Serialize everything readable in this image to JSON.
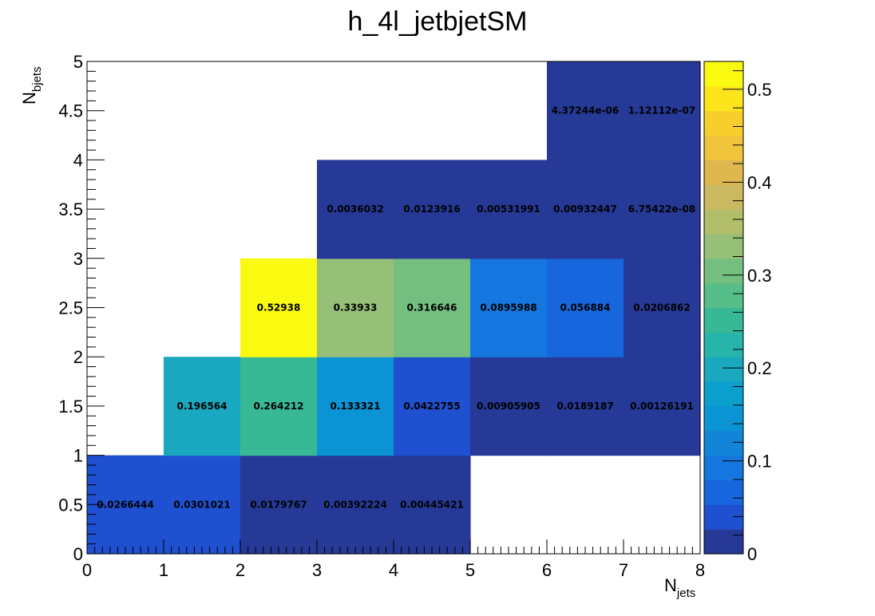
{
  "chart_data": {
    "type": "heatmap",
    "title": "h_4l_jetbjetSM",
    "xlabel_main": "N",
    "xlabel_sub": "jets",
    "ylabel_main": "N",
    "ylabel_sub": "bjets",
    "xlim": [
      0,
      8
    ],
    "ylim": [
      0,
      5
    ],
    "zlim": [
      0,
      0.53
    ],
    "x_ticks": [
      "0",
      "1",
      "2",
      "3",
      "4",
      "5",
      "6",
      "7",
      "8"
    ],
    "y_ticks": [
      "0",
      "0.5",
      "1",
      "1.5",
      "2",
      "2.5",
      "3",
      "3.5",
      "4",
      "4.5",
      "5"
    ],
    "z_ticks": [
      "0",
      "0.1",
      "0.2",
      "0.3",
      "0.4",
      "0.5"
    ],
    "grid": false,
    "colorbar": "right",
    "cells": [
      {
        "x": 0,
        "y": 0,
        "label": "0.0266444",
        "value": 0.0266444
      },
      {
        "x": 1,
        "y": 0,
        "label": "0.0301021",
        "value": 0.0301021
      },
      {
        "x": 2,
        "y": 0,
        "label": "0.0179767",
        "value": 0.0179767
      },
      {
        "x": 3,
        "y": 0,
        "label": "0.00392224",
        "value": 0.00392224
      },
      {
        "x": 4,
        "y": 0,
        "label": "0.00445421",
        "value": 0.00445421
      },
      {
        "x": 1,
        "y": 1,
        "label": "0.196564",
        "value": 0.196564
      },
      {
        "x": 2,
        "y": 1,
        "label": "0.264212",
        "value": 0.264212
      },
      {
        "x": 3,
        "y": 1,
        "label": "0.133321",
        "value": 0.133321
      },
      {
        "x": 4,
        "y": 1,
        "label": "0.0422755",
        "value": 0.0422755
      },
      {
        "x": 5,
        "y": 1,
        "label": "0.00905905",
        "value": 0.00905905
      },
      {
        "x": 6,
        "y": 1,
        "label": "0.0189187",
        "value": 0.0189187
      },
      {
        "x": 7,
        "y": 1,
        "label": "0.00126191",
        "value": 0.00126191
      },
      {
        "x": 2,
        "y": 2,
        "label": "0.52938",
        "value": 0.52938
      },
      {
        "x": 3,
        "y": 2,
        "label": "0.33933",
        "value": 0.33933
      },
      {
        "x": 4,
        "y": 2,
        "label": "0.316646",
        "value": 0.316646
      },
      {
        "x": 5,
        "y": 2,
        "label": "0.0895988",
        "value": 0.0895988
      },
      {
        "x": 6,
        "y": 2,
        "label": "0.056884",
        "value": 0.056884
      },
      {
        "x": 7,
        "y": 2,
        "label": "0.0206862",
        "value": 0.0206862
      },
      {
        "x": 3,
        "y": 3,
        "label": "0.0036032",
        "value": 0.0036032
      },
      {
        "x": 4,
        "y": 3,
        "label": "0.0123916",
        "value": 0.0123916
      },
      {
        "x": 5,
        "y": 3,
        "label": "0.00531991",
        "value": 0.00531991
      },
      {
        "x": 6,
        "y": 3,
        "label": "0.00932447",
        "value": 0.00932447
      },
      {
        "x": 7,
        "y": 3,
        "label": "6.75422e-08",
        "value": 6.75422e-08
      },
      {
        "x": 6,
        "y": 4,
        "label": "4.37244e-06",
        "value": 4.37244e-06
      },
      {
        "x": 7,
        "y": 4,
        "label": "1.12112e-07",
        "value": 1.12112e-07
      }
    ],
    "palette": [
      "#263997",
      "#1e50d0",
      "#1866dd",
      "#1476de",
      "#1385d8",
      "#0b94d3",
      "#0a9fcd",
      "#19a8bf",
      "#27b4ab",
      "#38b996",
      "#56be88",
      "#74bf80",
      "#96bf77",
      "#b2be6a",
      "#cab960",
      "#deb84f",
      "#f0c33c",
      "#f8ce2c",
      "#fde51c",
      "#f9fa0f"
    ]
  }
}
